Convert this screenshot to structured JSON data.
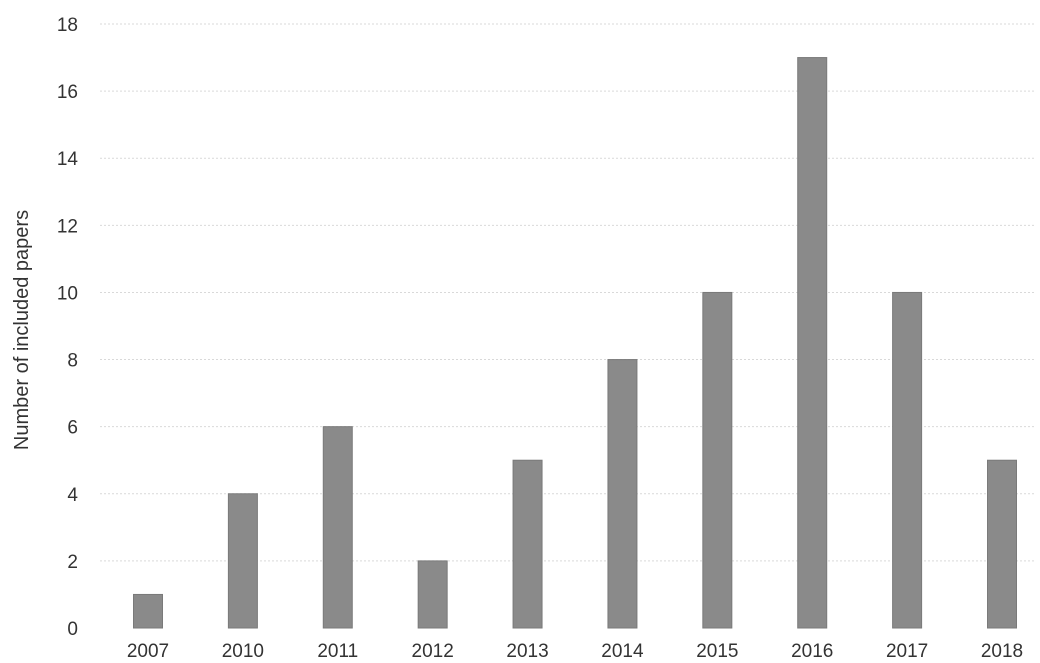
{
  "chart_data": {
    "type": "bar",
    "categories": [
      "2007",
      "2010",
      "2011",
      "2012",
      "2013",
      "2014",
      "2015",
      "2016",
      "2017",
      "2018"
    ],
    "values": [
      1,
      4,
      6,
      2,
      5,
      8,
      10,
      17,
      10,
      5
    ],
    "xlabel": "",
    "ylabel": "Number of included papers",
    "ylim": [
      0,
      18
    ],
    "yticks": [
      0,
      2,
      4,
      6,
      8,
      10,
      12,
      14,
      16,
      18
    ],
    "grid": true,
    "legend": "none",
    "bar_color": "#8a8a8a"
  }
}
